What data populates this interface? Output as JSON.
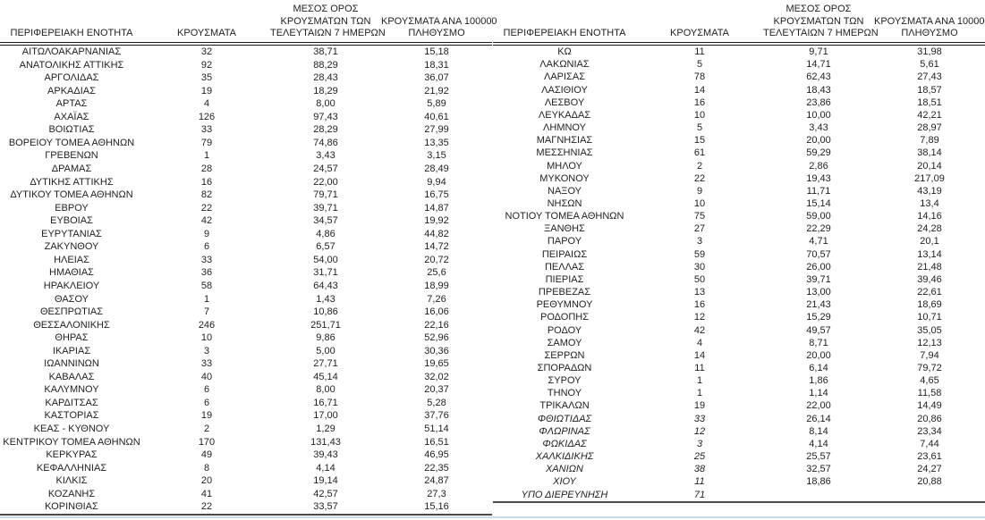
{
  "colors": {
    "text": "#1f1f1f",
    "header_rule": "#1a1a1a",
    "bottom_rule_dark": "#4a4a4a",
    "bottom_rule_light": "#cbd8eb"
  },
  "headers": {
    "region": "ΠΕΡΙΦΕΡΕΙΑΚΗ ΕΝΟΤΗΤΑ",
    "cases": "ΚΡΟΥΣΜΑΤΑ",
    "avg7": "ΜΕΣΟΣ ΟΡΟΣ\nΚΡΟΥΣΜΑΤΩΝ ΤΩΝ\nΤΕΛΕΥΤΑΙΩΝ 7 ΗΜΕΡΩΝ",
    "per100k": "ΚΡΟΥΣΜΑΤΑ ΑΝΑ 100000\nΠΛΗΘΥΣΜΟ"
  },
  "tables": [
    {
      "id": "left",
      "rows": [
        {
          "name": "ΑΙΤΩΛΟΑΚΑΡΝΑΝΙΑΣ",
          "cases": "32",
          "avg7": "38,71",
          "per100k": "15,18",
          "italic": false
        },
        {
          "name": "ΑΝΑΤΟΛΙΚΗΣ ΑΤΤΙΚΗΣ",
          "cases": "92",
          "avg7": "88,29",
          "per100k": "18,31",
          "italic": false
        },
        {
          "name": "ΑΡΓΟΛΙΔΑΣ",
          "cases": "35",
          "avg7": "28,43",
          "per100k": "36,07",
          "italic": false
        },
        {
          "name": "ΑΡΚΑΔΙΑΣ",
          "cases": "19",
          "avg7": "18,29",
          "per100k": "21,92",
          "italic": false
        },
        {
          "name": "ΑΡΤΑΣ",
          "cases": "4",
          "avg7": "8,00",
          "per100k": "5,89",
          "italic": false
        },
        {
          "name": "ΑΧΑΪΑΣ",
          "cases": "126",
          "avg7": "97,43",
          "per100k": "40,61",
          "italic": false
        },
        {
          "name": "ΒΟΙΩΤΙΑΣ",
          "cases": "33",
          "avg7": "28,29",
          "per100k": "27,99",
          "italic": false
        },
        {
          "name": "ΒΟΡΕΙΟΥ ΤΟΜΕΑ ΑΘΗΝΩΝ",
          "cases": "79",
          "avg7": "74,86",
          "per100k": "13,35",
          "italic": false
        },
        {
          "name": "ΓΡΕΒΕΝΩΝ",
          "cases": "1",
          "avg7": "3,43",
          "per100k": "3,15",
          "italic": false
        },
        {
          "name": "ΔΡΑΜΑΣ",
          "cases": "28",
          "avg7": "24,57",
          "per100k": "28,49",
          "italic": false
        },
        {
          "name": "ΔΥΤΙΚΗΣ ΑΤΤΙΚΗΣ",
          "cases": "16",
          "avg7": "22,00",
          "per100k": "9,94",
          "italic": false
        },
        {
          "name": "ΔΥΤΙΚΟΥ ΤΟΜΕΑ ΑΘΗΝΩΝ",
          "cases": "82",
          "avg7": "79,71",
          "per100k": "16,75",
          "italic": false
        },
        {
          "name": "ΕΒΡΟΥ",
          "cases": "22",
          "avg7": "39,71",
          "per100k": "14,87",
          "italic": false
        },
        {
          "name": "ΕΥΒΟΙΑΣ",
          "cases": "42",
          "avg7": "34,57",
          "per100k": "19,92",
          "italic": false
        },
        {
          "name": "ΕΥΡΥΤΑΝΙΑΣ",
          "cases": "9",
          "avg7": "4,86",
          "per100k": "44,82",
          "italic": false
        },
        {
          "name": "ΖΑΚΥΝΘΟΥ",
          "cases": "6",
          "avg7": "6,57",
          "per100k": "14,72",
          "italic": false
        },
        {
          "name": "ΗΛΕΙΑΣ",
          "cases": "33",
          "avg7": "54,00",
          "per100k": "20,72",
          "italic": false
        },
        {
          "name": "ΗΜΑΘΙΑΣ",
          "cases": "36",
          "avg7": "31,71",
          "per100k": "25,6",
          "italic": false
        },
        {
          "name": "ΗΡΑΚΛΕΙΟΥ",
          "cases": "58",
          "avg7": "64,43",
          "per100k": "18,99",
          "italic": false
        },
        {
          "name": "ΘΑΣΟΥ",
          "cases": "1",
          "avg7": "1,43",
          "per100k": "7,26",
          "italic": false
        },
        {
          "name": "ΘΕΣΠΡΩΤΙΑΣ",
          "cases": "7",
          "avg7": "10,86",
          "per100k": "16,06",
          "italic": false
        },
        {
          "name": "ΘΕΣΣΑΛΟΝΙΚΗΣ",
          "cases": "246",
          "avg7": "251,71",
          "per100k": "22,16",
          "italic": false
        },
        {
          "name": "ΘΗΡΑΣ",
          "cases": "10",
          "avg7": "9,86",
          "per100k": "52,96",
          "italic": false
        },
        {
          "name": "ΙΚΑΡΙΑΣ",
          "cases": "3",
          "avg7": "5,00",
          "per100k": "30,36",
          "italic": false
        },
        {
          "name": "ΙΩΑΝΝΙΝΩΝ",
          "cases": "33",
          "avg7": "27,71",
          "per100k": "19,65",
          "italic": false
        },
        {
          "name": "ΚΑΒΑΛΑΣ",
          "cases": "40",
          "avg7": "45,14",
          "per100k": "32,02",
          "italic": false
        },
        {
          "name": "ΚΑΛΥΜΝΟΥ",
          "cases": "6",
          "avg7": "8,00",
          "per100k": "20,37",
          "italic": false
        },
        {
          "name": "ΚΑΡΔΙΤΣΑΣ",
          "cases": "6",
          "avg7": "16,71",
          "per100k": "5,28",
          "italic": false
        },
        {
          "name": "ΚΑΣΤΟΡΙΑΣ",
          "cases": "19",
          "avg7": "17,00",
          "per100k": "37,76",
          "italic": false
        },
        {
          "name": "ΚΕΑΣ - ΚΥΘΝΟΥ",
          "cases": "2",
          "avg7": "1,29",
          "per100k": "51,14",
          "italic": false
        },
        {
          "name": "ΚΕΝΤΡΙΚΟΥ ΤΟΜΕΑ ΑΘΗΝΩΝ",
          "cases": "170",
          "avg7": "131,43",
          "per100k": "16,51",
          "italic": false
        },
        {
          "name": "ΚΕΡΚΥΡΑΣ",
          "cases": "49",
          "avg7": "39,43",
          "per100k": "46,95",
          "italic": false
        },
        {
          "name": "ΚΕΦΑΛΛΗΝΙΑΣ",
          "cases": "8",
          "avg7": "4,14",
          "per100k": "22,35",
          "italic": false
        },
        {
          "name": "ΚΙΛΚΙΣ",
          "cases": "20",
          "avg7": "19,14",
          "per100k": "24,87",
          "italic": false
        },
        {
          "name": "ΚΟΖΑΝΗΣ",
          "cases": "41",
          "avg7": "42,57",
          "per100k": "27,3",
          "italic": false
        },
        {
          "name": "ΚΟΡΙΝΘΙΑΣ",
          "cases": "22",
          "avg7": "33,57",
          "per100k": "15,16",
          "italic": false
        }
      ]
    },
    {
      "id": "right",
      "rows": [
        {
          "name": "ΚΩ",
          "cases": "11",
          "avg7": "9,71",
          "per100k": "31,98",
          "italic": false
        },
        {
          "name": "ΛΑΚΩΝΙΑΣ",
          "cases": "5",
          "avg7": "14,71",
          "per100k": "5,61",
          "italic": false
        },
        {
          "name": "ΛΑΡΙΣΑΣ",
          "cases": "78",
          "avg7": "62,43",
          "per100k": "27,43",
          "italic": false
        },
        {
          "name": "ΛΑΣΙΘΙΟΥ",
          "cases": "14",
          "avg7": "18,43",
          "per100k": "18,57",
          "italic": false
        },
        {
          "name": "ΛΕΣΒΟΥ",
          "cases": "16",
          "avg7": "23,86",
          "per100k": "18,51",
          "italic": false
        },
        {
          "name": "ΛΕΥΚΑΔΑΣ",
          "cases": "10",
          "avg7": "10,00",
          "per100k": "42,21",
          "italic": false
        },
        {
          "name": "ΛΗΜΝΟΥ",
          "cases": "5",
          "avg7": "3,43",
          "per100k": "28,97",
          "italic": false
        },
        {
          "name": "ΜΑΓΝΗΣΙΑΣ",
          "cases": "15",
          "avg7": "20,00",
          "per100k": "7,89",
          "italic": false
        },
        {
          "name": "ΜΕΣΣΗΝΙΑΣ",
          "cases": "61",
          "avg7": "59,29",
          "per100k": "38,14",
          "italic": false
        },
        {
          "name": "ΜΗΛΟΥ",
          "cases": "2",
          "avg7": "2,86",
          "per100k": "20,14",
          "italic": false
        },
        {
          "name": "ΜΥΚΟΝΟΥ",
          "cases": "22",
          "avg7": "19,43",
          "per100k": "217,09",
          "italic": false
        },
        {
          "name": "ΝΑΞΟΥ",
          "cases": "9",
          "avg7": "11,71",
          "per100k": "43,19",
          "italic": false
        },
        {
          "name": "ΝΗΣΩΝ",
          "cases": "10",
          "avg7": "15,14",
          "per100k": "13,4",
          "italic": false
        },
        {
          "name": "ΝΟΤΙΟΥ ΤΟΜΕΑ ΑΘΗΝΩΝ",
          "cases": "75",
          "avg7": "59,00",
          "per100k": "14,16",
          "italic": false
        },
        {
          "name": "ΞΑΝΘΗΣ",
          "cases": "27",
          "avg7": "22,29",
          "per100k": "24,28",
          "italic": false
        },
        {
          "name": "ΠΑΡΟΥ",
          "cases": "3",
          "avg7": "4,71",
          "per100k": "20,1",
          "italic": false
        },
        {
          "name": "ΠΕΙΡΑΙΩΣ",
          "cases": "59",
          "avg7": "70,57",
          "per100k": "13,14",
          "italic": false
        },
        {
          "name": "ΠΕΛΛΑΣ",
          "cases": "30",
          "avg7": "26,00",
          "per100k": "21,48",
          "italic": false
        },
        {
          "name": "ΠΙΕΡΙΑΣ",
          "cases": "50",
          "avg7": "39,71",
          "per100k": "39,46",
          "italic": false
        },
        {
          "name": "ΠΡΕΒΕΖΑΣ",
          "cases": "13",
          "avg7": "13,00",
          "per100k": "22,61",
          "italic": false
        },
        {
          "name": "ΡΕΘΥΜΝΟΥ",
          "cases": "16",
          "avg7": "21,43",
          "per100k": "18,69",
          "italic": false
        },
        {
          "name": "ΡΟΔΟΠΗΣ",
          "cases": "12",
          "avg7": "15,29",
          "per100k": "10,71",
          "italic": false
        },
        {
          "name": "ΡΟΔΟΥ",
          "cases": "42",
          "avg7": "49,57",
          "per100k": "35,05",
          "italic": false
        },
        {
          "name": "ΣΑΜΟΥ",
          "cases": "4",
          "avg7": "8,71",
          "per100k": "12,13",
          "italic": false
        },
        {
          "name": "ΣΕΡΡΩΝ",
          "cases": "14",
          "avg7": "20,00",
          "per100k": "7,94",
          "italic": false
        },
        {
          "name": "ΣΠΟΡΑΔΩΝ",
          "cases": "11",
          "avg7": "6,14",
          "per100k": "79,72",
          "italic": false
        },
        {
          "name": "ΣΥΡΟΥ",
          "cases": "1",
          "avg7": "1,86",
          "per100k": "4,65",
          "italic": false
        },
        {
          "name": "ΤΗΝΟΥ",
          "cases": "1",
          "avg7": "1,14",
          "per100k": "11,58",
          "italic": false
        },
        {
          "name": "ΤΡΙΚΑΛΩΝ",
          "cases": "19",
          "avg7": "22,00",
          "per100k": "14,49",
          "italic": false
        },
        {
          "name": "ΦΘΙΩΤΙΔΑΣ",
          "cases": "33",
          "avg7": "26,14",
          "per100k": "20,86",
          "italic": true
        },
        {
          "name": "ΦΛΩΡΙΝΑΣ",
          "cases": "12",
          "avg7": "8,14",
          "per100k": "23,34",
          "italic": true
        },
        {
          "name": "ΦΩΚΙΔΑΣ",
          "cases": "3",
          "avg7": "4,14",
          "per100k": "7,44",
          "italic": true
        },
        {
          "name": "ΧΑΛΚΙΔΙΚΗΣ",
          "cases": "25",
          "avg7": "25,57",
          "per100k": "23,61",
          "italic": true
        },
        {
          "name": "ΧΑΝΙΩΝ",
          "cases": "38",
          "avg7": "32,57",
          "per100k": "24,27",
          "italic": true
        },
        {
          "name": "ΧΙΟΥ",
          "cases": "11",
          "avg7": "18,86",
          "per100k": "20,88",
          "italic": true
        },
        {
          "name": "ΥΠΟ ΔΙΕΡΕΥΝΗΣΗ",
          "cases": "71",
          "avg7": "",
          "per100k": "",
          "italic": true
        }
      ]
    }
  ]
}
